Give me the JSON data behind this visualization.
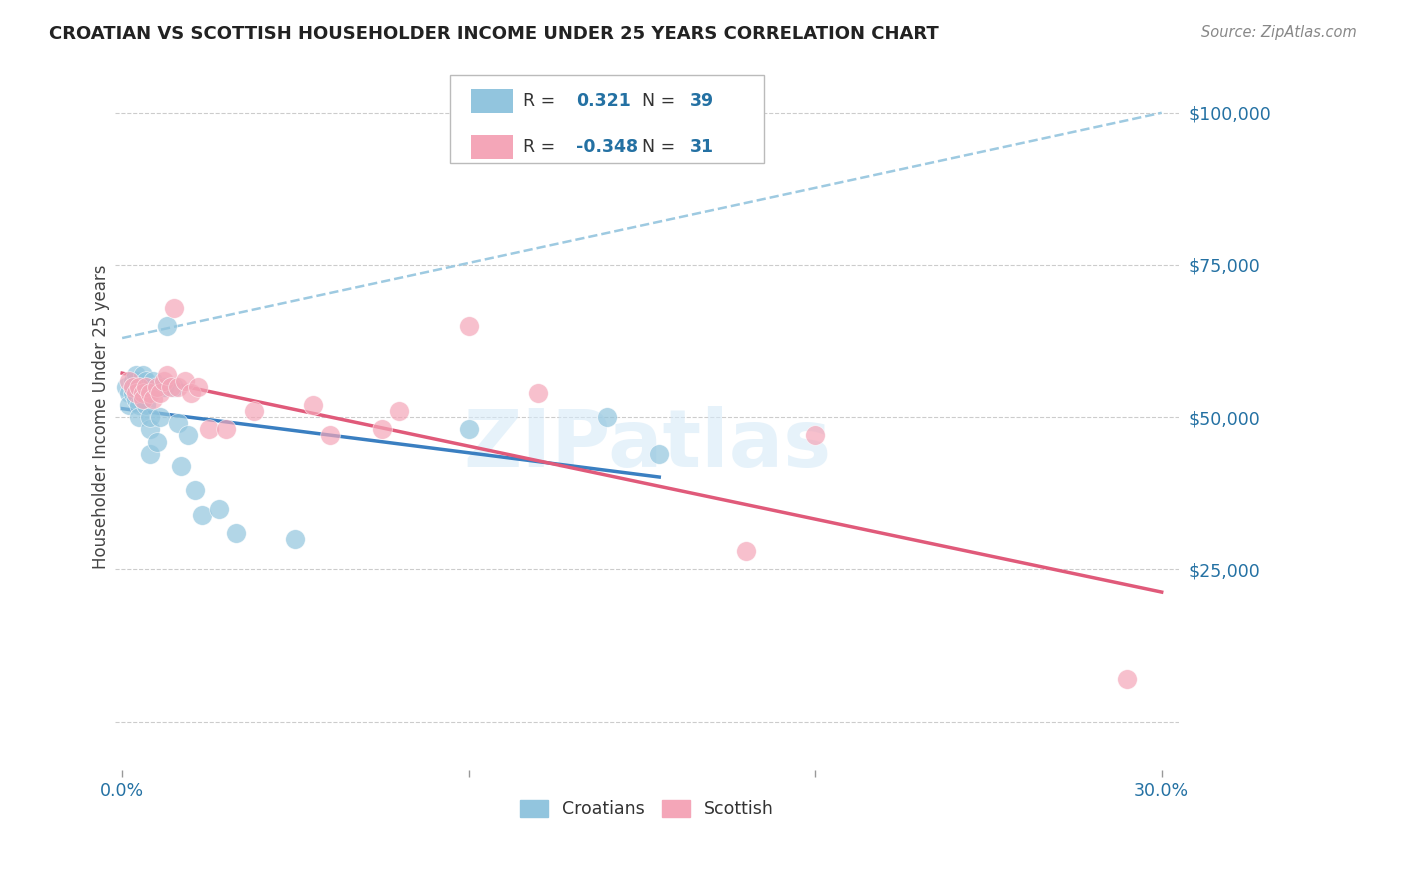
{
  "title": "CROATIAN VS SCOTTISH HOUSEHOLDER INCOME UNDER 25 YEARS CORRELATION CHART",
  "source": "Source: ZipAtlas.com",
  "ylabel": "Householder Income Under 25 years",
  "y_ticks": [
    0,
    25000,
    50000,
    75000,
    100000
  ],
  "y_tick_labels": [
    "",
    "$25,000",
    "$50,000",
    "$75,000",
    "$100,000"
  ],
  "croatian_R": 0.321,
  "croatian_N": 39,
  "scottish_R": -0.348,
  "scottish_N": 31,
  "croatian_color": "#92c5de",
  "scottish_color": "#f4a6b8",
  "croatian_line_color": "#3a7fc1",
  "scottish_line_color": "#e05a7a",
  "dash_line_color": "#9ecae1",
  "watermark_color": "#d6eaf8",
  "watermark": "ZIPatlas",
  "xlim_min": -0.002,
  "xlim_max": 0.305,
  "ylim_min": -8000,
  "ylim_max": 108000,
  "croatian_x": [
    0.001,
    0.002,
    0.002,
    0.003,
    0.003,
    0.003,
    0.004,
    0.004,
    0.004,
    0.005,
    0.005,
    0.005,
    0.006,
    0.006,
    0.006,
    0.007,
    0.007,
    0.007,
    0.008,
    0.008,
    0.008,
    0.009,
    0.009,
    0.01,
    0.011,
    0.012,
    0.013,
    0.015,
    0.016,
    0.017,
    0.019,
    0.021,
    0.023,
    0.028,
    0.033,
    0.05,
    0.1,
    0.14,
    0.155
  ],
  "croatian_y": [
    55000,
    54000,
    52000,
    56000,
    54000,
    55000,
    56000,
    53000,
    57000,
    55000,
    52000,
    50000,
    55000,
    53000,
    57000,
    54000,
    52000,
    56000,
    48000,
    44000,
    50000,
    55000,
    56000,
    46000,
    50000,
    55000,
    65000,
    55000,
    49000,
    42000,
    47000,
    38000,
    34000,
    35000,
    31000,
    30000,
    48000,
    50000,
    44000
  ],
  "scottish_x": [
    0.002,
    0.003,
    0.004,
    0.005,
    0.006,
    0.006,
    0.007,
    0.008,
    0.009,
    0.01,
    0.011,
    0.012,
    0.013,
    0.014,
    0.015,
    0.016,
    0.018,
    0.02,
    0.022,
    0.025,
    0.03,
    0.038,
    0.055,
    0.06,
    0.075,
    0.08,
    0.1,
    0.12,
    0.18,
    0.2,
    0.29
  ],
  "scottish_y": [
    56000,
    55000,
    54000,
    55000,
    54000,
    53000,
    55000,
    54000,
    53000,
    55000,
    54000,
    56000,
    57000,
    55000,
    68000,
    55000,
    56000,
    54000,
    55000,
    48000,
    48000,
    51000,
    52000,
    47000,
    48000,
    51000,
    65000,
    54000,
    28000,
    47000,
    7000
  ]
}
